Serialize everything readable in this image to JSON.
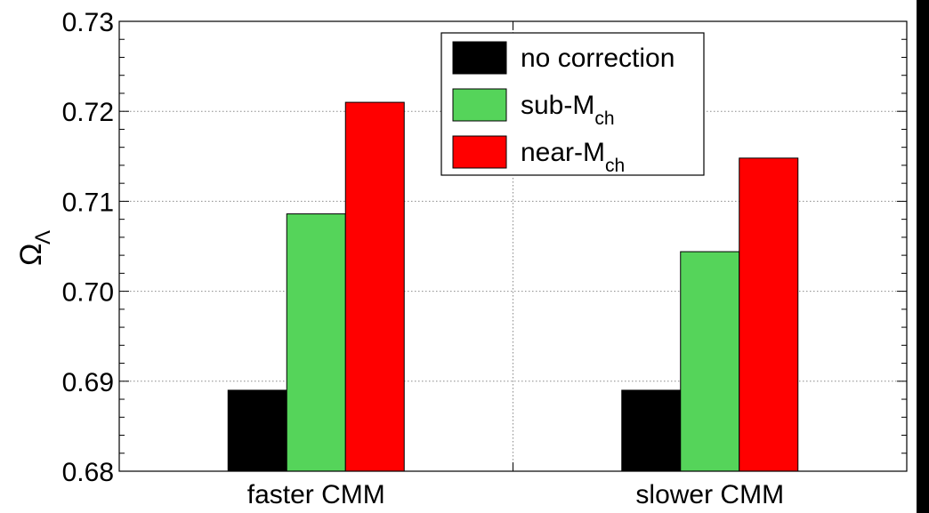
{
  "chart_data": {
    "type": "bar",
    "categories": [
      "faster CMM",
      "slower CMM"
    ],
    "series": [
      {
        "name": "no correction",
        "color": "#000000",
        "values": [
          0.689,
          0.689
        ]
      },
      {
        "name": "sub-M",
        "name_sub": "ch",
        "color": "#55d45a",
        "values": [
          0.7086,
          0.7044
        ]
      },
      {
        "name": "near-M",
        "name_sub": "ch",
        "color": "#ff0000",
        "values": [
          0.721,
          0.7148
        ]
      }
    ],
    "ylabel": "Ω",
    "ylabel_sub": "Λ",
    "ylim": [
      0.68,
      0.73
    ],
    "yticks": [
      "0.68",
      "0.69",
      "0.70",
      "0.71",
      "0.72",
      "0.73"
    ],
    "grid": true,
    "legend_position": "top-right"
  }
}
